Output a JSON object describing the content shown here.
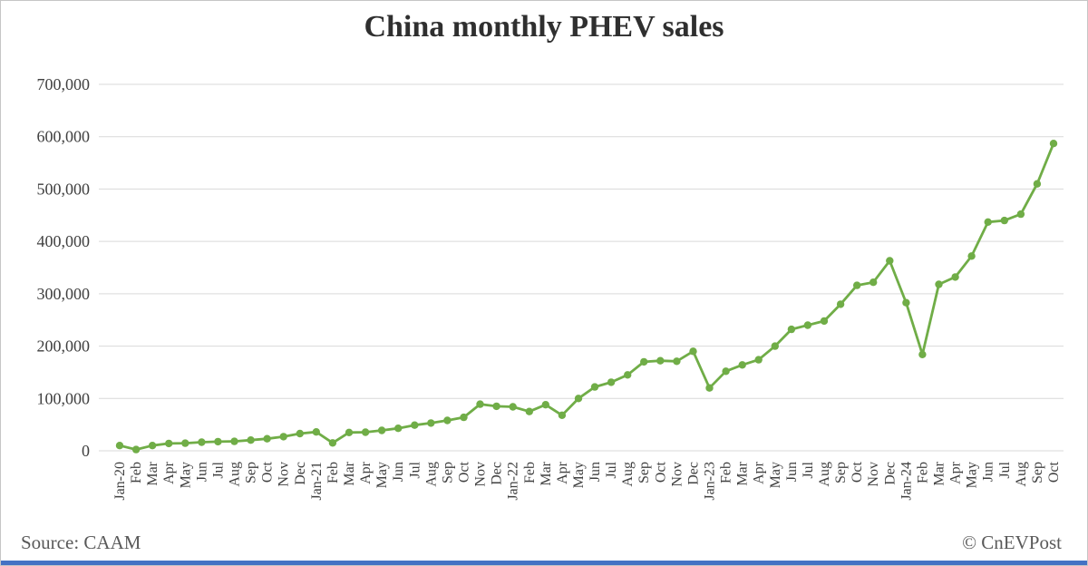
{
  "page": {
    "background": "#ffffff",
    "border_color": "#c6c6c6",
    "brand_bar_color": "#4472c4"
  },
  "footer": {
    "source": "Source: CAAM",
    "copyright": "© CnEVPost"
  },
  "chart_data": {
    "type": "line",
    "title": "China monthly PHEV sales",
    "xlabel": "",
    "ylabel": "",
    "x": [
      "Jan-20",
      "Feb",
      "Mar",
      "Apr",
      "May",
      "Jun",
      "Jul",
      "Aug",
      "Sep",
      "Oct",
      "Nov",
      "Dec",
      "Jan-21",
      "Feb",
      "Mar",
      "Apr",
      "May",
      "Jun",
      "Jul",
      "Aug",
      "Sep",
      "Oct",
      "Nov",
      "Dec",
      "Jan-22",
      "Feb",
      "Mar",
      "Apr",
      "May",
      "Jun",
      "Jul",
      "Aug",
      "Sep",
      "Oct",
      "Nov",
      "Dec",
      "Jan-23",
      "Feb",
      "Mar",
      "Apr",
      "May",
      "Jun",
      "Jul",
      "Aug",
      "Sep",
      "Oct",
      "Nov",
      "Dec",
      "Jan-24",
      "Feb",
      "Mar",
      "Apr",
      "May",
      "Jun",
      "Jul",
      "Aug",
      "Sep",
      "Oct"
    ],
    "values": [
      10000,
      2500,
      10000,
      14000,
      14500,
      16500,
      17500,
      18000,
      20500,
      23000,
      27000,
      33000,
      36000,
      15000,
      35000,
      35500,
      39000,
      43000,
      49000,
      53000,
      58000,
      64000,
      89000,
      85000,
      84000,
      75000,
      88000,
      68000,
      100000,
      122000,
      131000,
      145000,
      170000,
      172000,
      171000,
      190000,
      120000,
      152000,
      164000,
      174000,
      200000,
      232000,
      240000,
      248000,
      280000,
      316000,
      322000,
      363000,
      283000,
      184000,
      318000,
      332000,
      372000,
      437000,
      440000,
      452000,
      510000,
      587000
    ],
    "ylim": [
      0,
      700000
    ],
    "ytick_interval": 100000,
    "ytick_labels": [
      "0",
      "100,000",
      "200,000",
      "300,000",
      "400,000",
      "500,000",
      "600,000",
      "700,000"
    ],
    "grid": true,
    "legend": "none",
    "line_color": "#70ad47",
    "marker": "circle",
    "grid_color": "#d9d9d9",
    "axis_text_color": "#404040"
  }
}
